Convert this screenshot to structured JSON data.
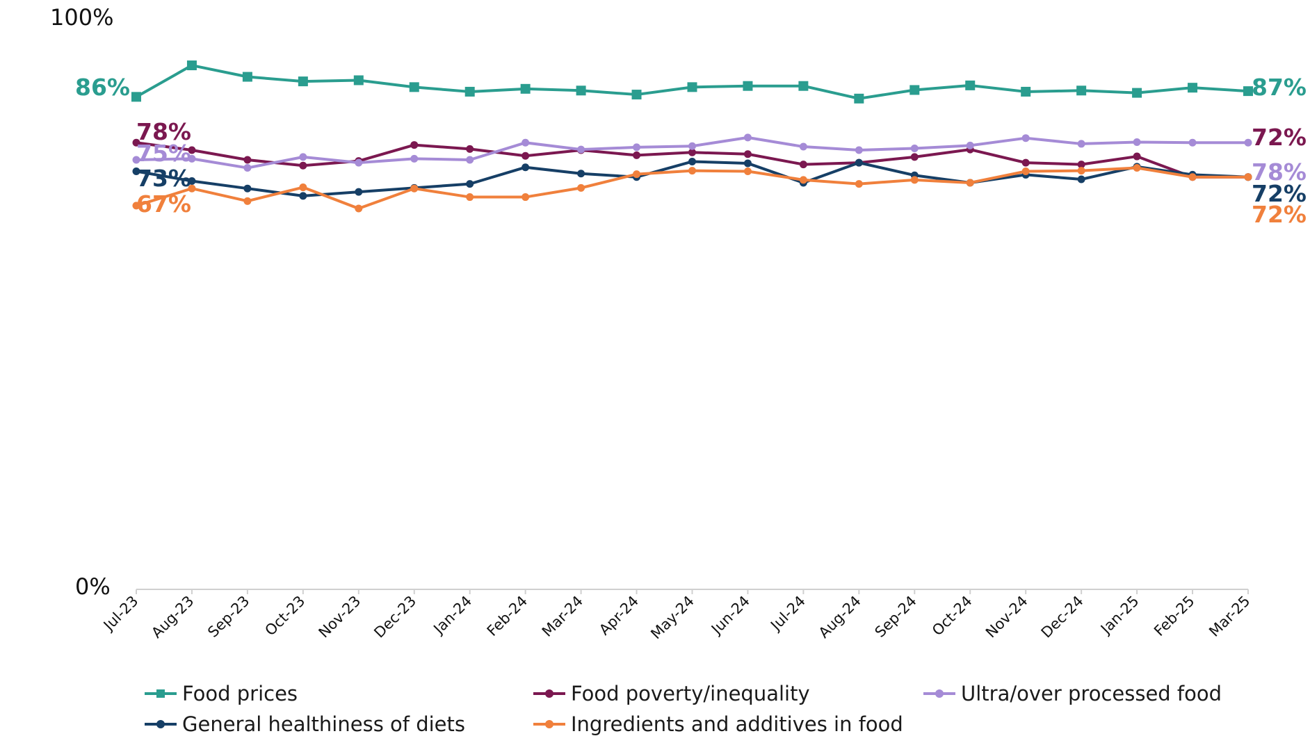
{
  "chart_data": {
    "type": "line",
    "y_axis": {
      "min": 0,
      "max": 100,
      "labels": [
        "100%",
        "0%"
      ]
    },
    "x": [
      "Jul-23",
      "Aug-23",
      "Sep-23",
      "Oct-23",
      "Nov-23",
      "Dec-23",
      "Jan-24",
      "Feb-24",
      "Mar-24",
      "Apr-24",
      "May-24",
      "Jun-24",
      "Jul-24",
      "Aug-24",
      "Sep-24",
      "Oct-24",
      "Nov-24",
      "Dec-24",
      "Jan-25",
      "Feb-25",
      "Mar-25"
    ],
    "series": [
      {
        "name": "Food prices",
        "color": "#2a9d8f",
        "marker": "square",
        "start_label": "86%",
        "end_label": "87%",
        "values": [
          86,
          91.5,
          89.5,
          88.7,
          88.9,
          87.7,
          86.9,
          87.4,
          87.1,
          86.4,
          87.7,
          87.9,
          87.9,
          85.7,
          87.2,
          88.0,
          86.9,
          87.1,
          86.7,
          87.6,
          87
        ]
      },
      {
        "name": "Food poverty/inequality",
        "color": "#7b1850",
        "marker": "circle",
        "start_label": "78%",
        "end_label": "72%",
        "values": [
          78,
          76.7,
          75.0,
          74.0,
          74.8,
          77.6,
          76.9,
          75.7,
          76.7,
          75.8,
          76.3,
          76.0,
          74.2,
          74.5,
          75.5,
          76.8,
          74.5,
          74.2,
          75.6,
          72,
          72
        ]
      },
      {
        "name": "Ultra/over processed food",
        "color": "#a58bd6",
        "marker": "circle",
        "start_label": "75%",
        "end_label": "78%",
        "values": [
          75,
          75.2,
          73.6,
          75.5,
          74.5,
          75.2,
          75.0,
          78.0,
          76.8,
          77.2,
          77.4,
          78.9,
          77.3,
          76.7,
          77.0,
          77.5,
          78.8,
          77.8,
          78.1,
          78.0,
          78
        ]
      },
      {
        "name": "General healthiness of diets",
        "color": "#163f66",
        "marker": "circle",
        "start_label": "73%",
        "end_label": "72%",
        "values": [
          73,
          71.3,
          70.0,
          68.7,
          69.4,
          70.1,
          70.8,
          73.7,
          72.6,
          72.0,
          74.7,
          74.4,
          71.0,
          74.5,
          72.3,
          71.0,
          72.4,
          71.6,
          73.8,
          72.4,
          72
        ]
      },
      {
        "name": "Ingredients and additives in food",
        "color": "#f0803c",
        "marker": "circle",
        "start_label": "67%",
        "end_label": "72%",
        "values": [
          67,
          70.0,
          67.8,
          70.2,
          66.5,
          70.0,
          68.5,
          68.5,
          70.1,
          72.5,
          73.1,
          73.0,
          71.5,
          70.8,
          71.5,
          71.0,
          73.0,
          73.1,
          73.6,
          72,
          72
        ]
      }
    ]
  }
}
